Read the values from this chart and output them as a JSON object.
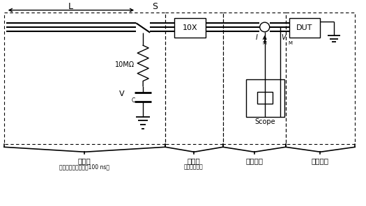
{
  "bg_color": "#ffffff",
  "line_color": "#000000",
  "fig_width": 5.25,
  "fig_height": 2.96,
  "dpi": 100,
  "labels": {
    "L": "L",
    "S": "S",
    "resistor": "10MΩ",
    "Vc": "V",
    "Vc_sub": "C",
    "IM": "I",
    "IM_sub": "M",
    "VM": "V",
    "VM_sub": "M",
    "box1": "10X",
    "box2": "DUT",
    "scope": "Scope",
    "sec1": "脉冲源",
    "sec1b": "（脉冲宽度典型值为100 ns）",
    "sec2": "衰减器",
    "sec2b": "（反射减少）",
    "sec3": "脉冲捕获",
    "sec4": "待测器件"
  }
}
